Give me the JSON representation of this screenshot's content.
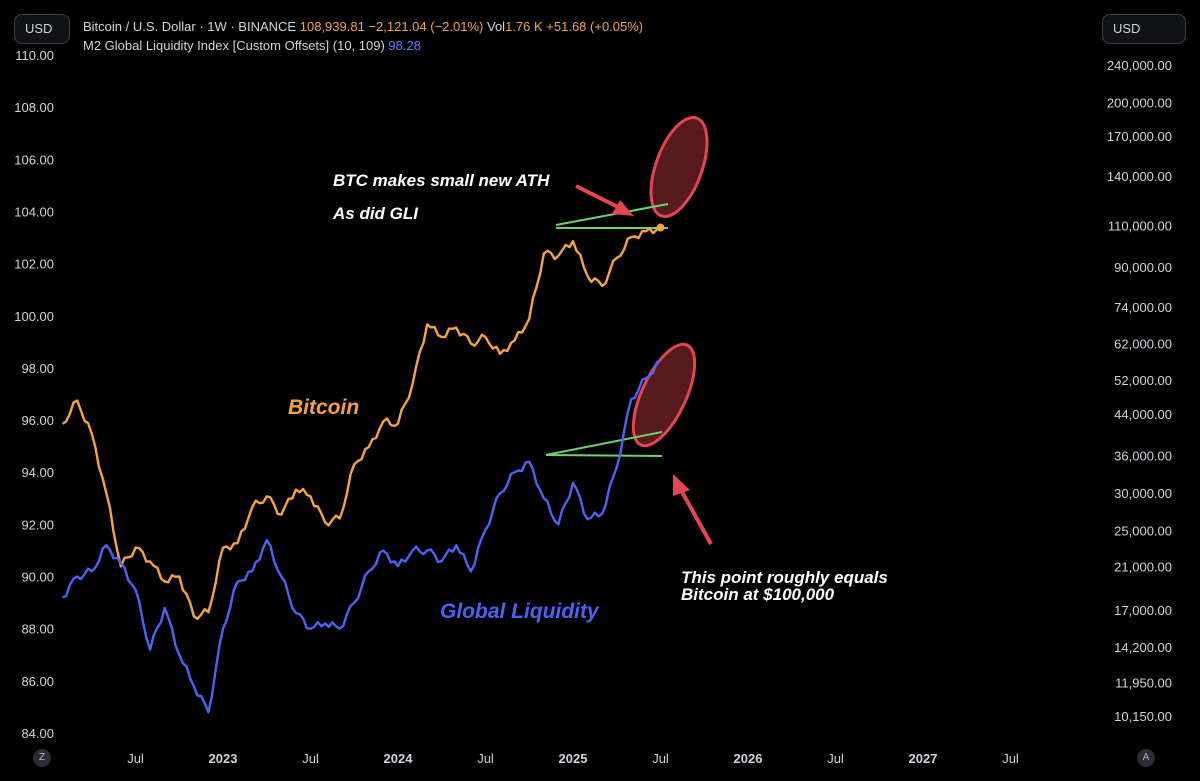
{
  "header": {
    "currency_left": "USD",
    "currency_right": "USD",
    "btc_symbol": "Bitcoin / U.S. Dollar · 1W · BINANCE",
    "btc_close": "108,939.81",
    "btc_change": "−2,121.04 (−2.01%)",
    "vol_label": "Vol",
    "vol_value": "1.76 K",
    "vol_change": "+51.68 (+0.05%)",
    "gli_symbol": "M2 Global Liquidity Index [Custom Offsets] (10, 109)",
    "gli_value": "98.28"
  },
  "buttons": {
    "zoom": "Z",
    "auto": "A"
  },
  "colors": {
    "bitcoin": "#f7a43b",
    "liquidity": "#4b63f5",
    "trendline": "#6fd36a",
    "highlight": "#e5454f",
    "annotation": "#ffffff",
    "background": "#000000"
  },
  "chart_data": {
    "type": "line",
    "left_axis": {
      "ticks": [
        "110.00",
        "108.00",
        "106.00",
        "104.00",
        "102.00",
        "100.00",
        "98.00",
        "96.00",
        "94.00",
        "92.00",
        "90.00",
        "88.00",
        "86.00",
        "84.00"
      ],
      "range": [
        84,
        110
      ]
    },
    "right_axis": {
      "scale": "log",
      "ticks": [
        "240,000.00",
        "200,000.00",
        "170,000.00",
        "140,000.00",
        "110,000.00",
        "90,000.00",
        "74,000.00",
        "62,000.00",
        "52,000.00",
        "44,000.00",
        "36,000.00",
        "30,000.00",
        "25,000.00",
        "21,000.00",
        "17,000.00",
        "14,200.00",
        "11,950.00",
        "10,150.00"
      ]
    },
    "x_axis": {
      "ticks": [
        {
          "label": "Jul",
          "date": "2022-07",
          "bold": false
        },
        {
          "label": "2023",
          "date": "2023-01",
          "bold": true
        },
        {
          "label": "Jul",
          "date": "2023-07",
          "bold": false
        },
        {
          "label": "2024",
          "date": "2024-01",
          "bold": true
        },
        {
          "label": "Jul",
          "date": "2024-07",
          "bold": false
        },
        {
          "label": "2025",
          "date": "2025-01",
          "bold": true
        },
        {
          "label": "Jul",
          "date": "2025-07",
          "bold": false
        },
        {
          "label": "2026",
          "date": "2026-01",
          "bold": true
        },
        {
          "label": "Jul",
          "date": "2026-07",
          "bold": false
        },
        {
          "label": "2027",
          "date": "2027-01",
          "bold": true
        },
        {
          "label": "Jul",
          "date": "2027-07",
          "bold": false
        }
      ]
    },
    "series": [
      {
        "name": "Bitcoin",
        "color": "#f7a43b",
        "axis": "right",
        "points": [
          [
            "2022-02",
            42000
          ],
          [
            "2022-03",
            47000
          ],
          [
            "2022-04",
            40000
          ],
          [
            "2022-05",
            30000
          ],
          [
            "2022-06",
            21000
          ],
          [
            "2022-07",
            23000
          ],
          [
            "2022-08",
            21500
          ],
          [
            "2022-09",
            19500
          ],
          [
            "2022-10",
            20000
          ],
          [
            "2022-11",
            16500
          ],
          [
            "2022-12",
            16800
          ],
          [
            "2023-01",
            23000
          ],
          [
            "2023-02",
            23500
          ],
          [
            "2023-03",
            28000
          ],
          [
            "2023-04",
            29500
          ],
          [
            "2023-05",
            27000
          ],
          [
            "2023-06",
            30500
          ],
          [
            "2023-07",
            29500
          ],
          [
            "2023-08",
            26000
          ],
          [
            "2023-09",
            26500
          ],
          [
            "2023-10",
            34500
          ],
          [
            "2023-11",
            37500
          ],
          [
            "2023-12",
            42500
          ],
          [
            "2024-01",
            42000
          ],
          [
            "2024-02",
            51000
          ],
          [
            "2024-03",
            68000
          ],
          [
            "2024-04",
            64000
          ],
          [
            "2024-05",
            67000
          ],
          [
            "2024-06",
            62000
          ],
          [
            "2024-07",
            64000
          ],
          [
            "2024-08",
            59000
          ],
          [
            "2024-09",
            63000
          ],
          [
            "2024-10",
            70000
          ],
          [
            "2024-11",
            96000
          ],
          [
            "2024-12",
            95000
          ],
          [
            "2025-01",
            102000
          ],
          [
            "2025-02",
            86000
          ],
          [
            "2025-03",
            82000
          ],
          [
            "2025-04",
            94000
          ],
          [
            "2025-05",
            104000
          ],
          [
            "2025-06",
            107000
          ],
          [
            "2025-07",
            108940
          ]
        ]
      },
      {
        "name": "Global Liquidity",
        "color": "#4b63f5",
        "axis": "left",
        "points": [
          [
            "2022-02",
            89.2
          ],
          [
            "2022-03",
            90.0
          ],
          [
            "2022-04",
            90.2
          ],
          [
            "2022-05",
            91.2
          ],
          [
            "2022-06",
            90.5
          ],
          [
            "2022-07",
            89.5
          ],
          [
            "2022-08",
            87.2
          ],
          [
            "2022-09",
            88.8
          ],
          [
            "2022-10",
            87.0
          ],
          [
            "2022-11",
            85.8
          ],
          [
            "2022-12",
            84.8
          ],
          [
            "2023-01",
            88.0
          ],
          [
            "2023-02",
            89.8
          ],
          [
            "2023-03",
            90.2
          ],
          [
            "2023-04",
            91.4
          ],
          [
            "2023-05",
            90.0
          ],
          [
            "2023-06",
            88.6
          ],
          [
            "2023-07",
            88.0
          ],
          [
            "2023-08",
            88.2
          ],
          [
            "2023-09",
            88.0
          ],
          [
            "2023-10",
            89.0
          ],
          [
            "2023-11",
            90.2
          ],
          [
            "2023-12",
            91.0
          ],
          [
            "2024-01",
            90.4
          ],
          [
            "2024-02",
            91.0
          ],
          [
            "2024-03",
            91.0
          ],
          [
            "2024-04",
            90.6
          ],
          [
            "2024-05",
            91.2
          ],
          [
            "2024-06",
            90.2
          ],
          [
            "2024-07",
            91.8
          ],
          [
            "2024-08",
            93.2
          ],
          [
            "2024-09",
            94.0
          ],
          [
            "2024-10",
            94.4
          ],
          [
            "2024-11",
            93.0
          ],
          [
            "2024-12",
            92.0
          ],
          [
            "2025-01",
            93.6
          ],
          [
            "2025-02",
            92.2
          ],
          [
            "2025-03",
            92.4
          ],
          [
            "2025-04",
            94.2
          ],
          [
            "2025-05",
            96.8
          ],
          [
            "2025-06",
            97.6
          ],
          [
            "2025-07",
            98.3
          ]
        ]
      }
    ],
    "annotations": [
      {
        "text": "BTC makes small new ATH"
      },
      {
        "text": "As did GLI"
      },
      {
        "text": "Bitcoin"
      },
      {
        "text": "Global Liquidity"
      },
      {
        "text": "This point roughly equals"
      },
      {
        "text": "Bitcoin at $100,000"
      }
    ]
  }
}
